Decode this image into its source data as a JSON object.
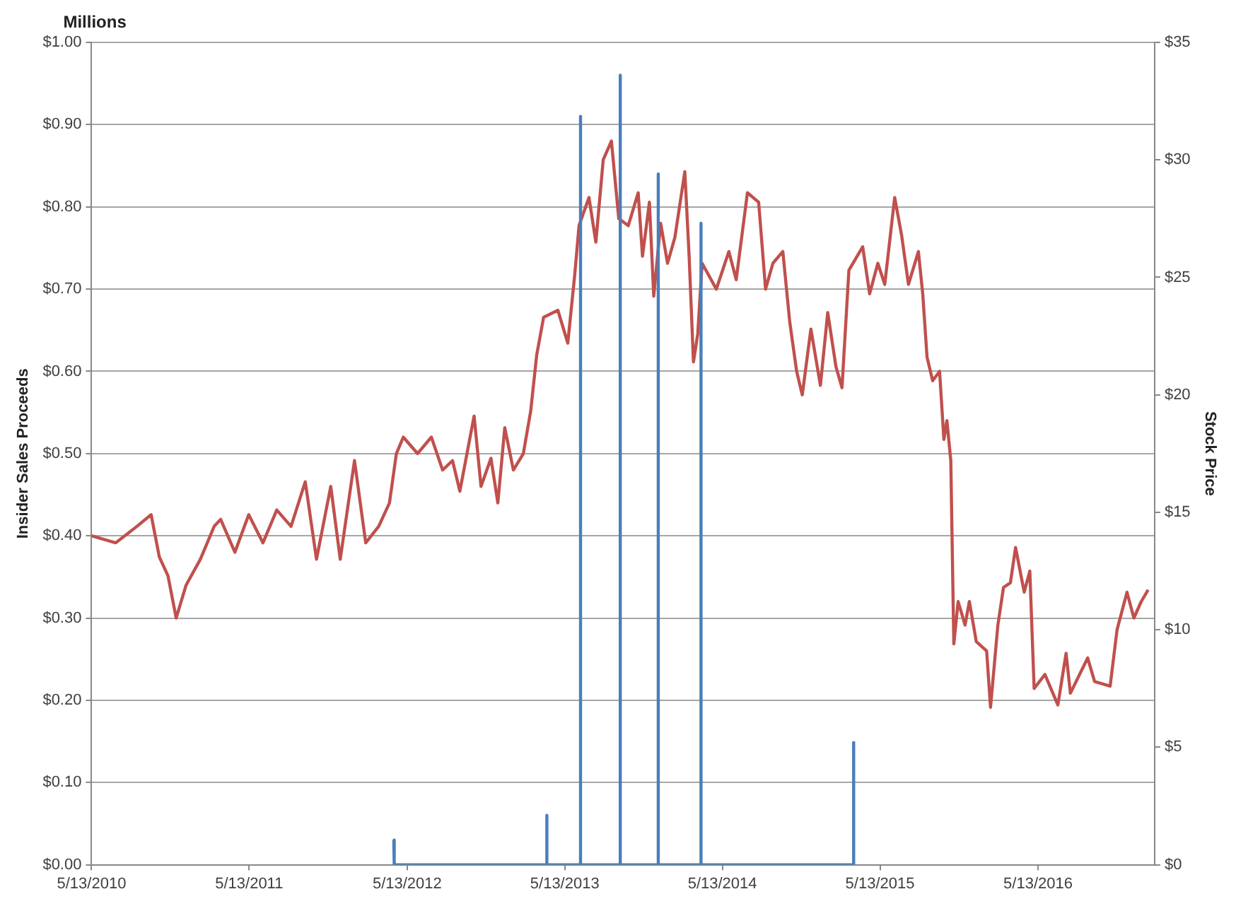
{
  "chart_data": {
    "type": "line",
    "xlabel": null,
    "ylabel": "Insider Sales Proceeds",
    "y2label": "Stock Price",
    "annotations": [
      "Millions"
    ],
    "xlim": [
      "2010-05-13",
      "2017-02-07"
    ],
    "xticks": [
      {
        "value": "2010-05-13",
        "label": "5/13/2010"
      },
      {
        "value": "2011-05-13",
        "label": "5/13/2011"
      },
      {
        "value": "2012-05-13",
        "label": "5/13/2012"
      },
      {
        "value": "2013-05-13",
        "label": "5/13/2013"
      },
      {
        "value": "2014-05-13",
        "label": "5/13/2014"
      },
      {
        "value": "2015-05-13",
        "label": "5/13/2015"
      },
      {
        "value": "2016-05-13",
        "label": "5/13/2016"
      }
    ],
    "ylim": [
      0,
      1
    ],
    "yticks": [
      {
        "value": 0,
        "label": "$0.00"
      },
      {
        "value": 0.1,
        "label": "$0.10"
      },
      {
        "value": 0.2,
        "label": "$0.20"
      },
      {
        "value": 0.3,
        "label": "$0.30"
      },
      {
        "value": 0.4,
        "label": "$0.40"
      },
      {
        "value": 0.5,
        "label": "$0.50"
      },
      {
        "value": 0.6,
        "label": "$0.60"
      },
      {
        "value": 0.7,
        "label": "$0.70"
      },
      {
        "value": 0.8,
        "label": "$0.80"
      },
      {
        "value": 0.9,
        "label": "$0.90"
      },
      {
        "value": 1,
        "label": "$1.00"
      }
    ],
    "y2lim": [
      0,
      35
    ],
    "y2ticks": [
      {
        "value": 0,
        "label": "$0"
      },
      {
        "value": 5,
        "label": "$5"
      },
      {
        "value": 10,
        "label": "$10"
      },
      {
        "value": 15,
        "label": "$15"
      },
      {
        "value": 20,
        "label": "$20"
      },
      {
        "value": 25,
        "label": "$25"
      },
      {
        "value": 30,
        "label": "$30"
      },
      {
        "value": 35,
        "label": "$35"
      }
    ],
    "grid": "y",
    "legend": false,
    "marker": "none",
    "line_style": "solid",
    "series": [
      {
        "color": "#c0504d",
        "axis": "y2",
        "x": [
          "2010-05-13",
          "2010-07-08",
          "2010-08-26",
          "2010-09-28",
          "2010-10-17",
          "2010-11-06",
          "2010-11-25",
          "2010-12-18",
          "2011-01-20",
          "2011-02-21",
          "2011-03-08",
          "2011-04-10",
          "2011-05-12",
          "2011-06-14",
          "2011-07-16",
          "2011-08-18",
          "2011-09-20",
          "2011-10-16",
          "2011-11-18",
          "2011-12-10",
          "2012-01-12",
          "2012-02-07",
          "2012-03-08",
          "2012-04-02",
          "2012-04-18",
          "2012-05-04",
          "2012-06-06",
          "2012-07-08",
          "2012-08-03",
          "2012-08-26",
          "2012-09-12",
          "2012-10-15",
          "2012-10-31",
          "2012-11-23",
          "2012-12-09",
          "2012-12-25",
          "2013-01-14",
          "2013-02-06",
          "2013-02-23",
          "2013-03-09",
          "2013-03-25",
          "2013-04-27",
          "2013-05-20",
          "2013-06-05",
          "2013-06-15",
          "2013-07-08",
          "2013-07-24",
          "2013-08-10",
          "2013-08-29",
          "2013-09-15",
          "2013-10-07",
          "2013-10-30",
          "2013-11-09",
          "2013-11-25",
          "2013-12-05",
          "2013-12-21",
          "2014-01-06",
          "2014-01-23",
          "2014-02-15",
          "2014-02-25",
          "2014-03-07",
          "2014-03-17",
          "2014-03-27",
          "2014-04-29",
          "2014-05-28",
          "2014-06-14",
          "2014-07-10",
          "2014-08-05",
          "2014-08-21",
          "2014-09-07",
          "2014-09-30",
          "2014-10-16",
          "2014-11-01",
          "2014-11-14",
          "2014-12-04",
          "2014-12-26",
          "2015-01-12",
          "2015-01-31",
          "2015-02-14",
          "2015-03-02",
          "2015-04-03",
          "2015-04-19",
          "2015-05-08",
          "2015-05-24",
          "2015-06-16",
          "2015-07-02",
          "2015-07-18",
          "2015-08-10",
          "2015-08-20",
          "2015-08-30",
          "2015-09-12",
          "2015-09-28",
          "2015-10-08",
          "2015-10-15",
          "2015-10-24",
          "2015-10-31",
          "2015-11-10",
          "2015-11-26",
          "2015-12-06",
          "2015-12-22",
          "2016-01-15",
          "2016-01-24",
          "2016-02-10",
          "2016-02-23",
          "2016-03-10",
          "2016-03-22",
          "2016-04-11",
          "2016-04-24",
          "2016-05-04",
          "2016-05-29",
          "2016-06-28",
          "2016-07-17",
          "2016-07-27",
          "2016-09-05",
          "2016-09-21",
          "2016-10-27",
          "2016-11-12",
          "2016-12-05",
          "2016-12-21",
          "2017-01-07",
          "2017-01-23"
        ],
        "values": [
          14.0,
          13.7,
          14.4,
          14.9,
          13.1,
          12.3,
          10.5,
          11.9,
          13.0,
          14.4,
          14.7,
          13.3,
          14.9,
          13.7,
          15.1,
          14.4,
          16.3,
          13.0,
          16.1,
          13.0,
          17.2,
          13.7,
          14.4,
          15.4,
          17.5,
          18.2,
          17.5,
          18.2,
          16.8,
          17.2,
          15.9,
          19.1,
          16.1,
          17.3,
          15.4,
          18.6,
          16.8,
          17.5,
          19.3,
          21.7,
          23.3,
          23.6,
          22.2,
          25.1,
          27.2,
          28.4,
          26.5,
          30.0,
          30.8,
          27.5,
          27.2,
          28.6,
          25.9,
          28.2,
          24.2,
          27.3,
          25.6,
          26.7,
          29.5,
          25.9,
          21.4,
          22.6,
          25.6,
          24.5,
          26.1,
          24.9,
          28.6,
          28.2,
          24.5,
          25.6,
          26.1,
          23.1,
          21.0,
          20.0,
          22.8,
          20.4,
          23.5,
          21.2,
          20.3,
          25.3,
          26.3,
          24.3,
          25.6,
          24.7,
          28.4,
          26.8,
          24.7,
          26.1,
          24.3,
          21.6,
          20.6,
          21.0,
          18.1,
          18.9,
          17.2,
          9.4,
          11.2,
          10.2,
          11.2,
          9.5,
          9.1,
          6.7,
          10.2,
          11.8,
          12.0,
          13.5,
          11.6,
          12.5,
          7.5,
          8.1,
          6.8,
          9.0,
          7.3,
          8.8,
          7.8,
          7.6,
          10.0,
          11.6,
          10.5,
          11.2,
          11.7
        ]
      },
      {
        "color": "#4a7ebb",
        "axis": "y",
        "x": [
          "2012-04-12",
          "2012-04-13",
          "2013-03-31",
          "2013-04-01",
          "2013-04-02",
          "2013-06-17",
          "2013-06-18",
          "2013-06-19",
          "2013-09-17",
          "2013-09-18",
          "2013-09-19",
          "2013-12-14",
          "2013-12-15",
          "2013-12-16",
          "2014-03-23",
          "2014-03-24",
          "2014-03-25",
          "2015-03-12",
          "2015-03-13"
        ],
        "values": [
          0.03,
          0,
          0,
          0.06,
          0,
          0,
          0.91,
          0,
          0,
          0.96,
          0,
          0,
          0.84,
          0,
          0,
          0.78,
          0,
          0,
          0.15
        ]
      }
    ]
  }
}
